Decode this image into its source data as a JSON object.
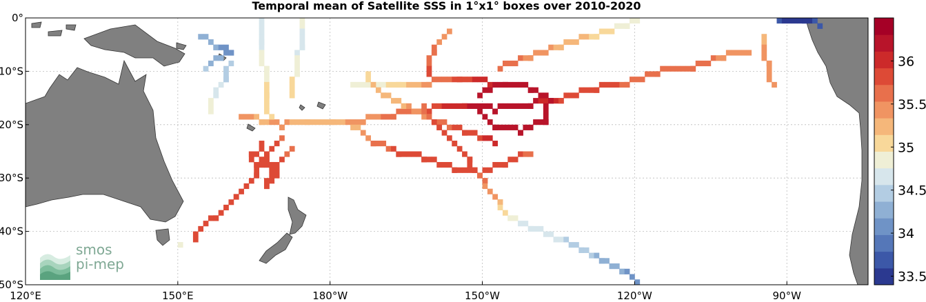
{
  "title": "Temporal mean of Satellite SSS in 1°x1° boxes over 2010-2020",
  "lon_ticks": [
    {
      "label": "120°E",
      "lon": 120
    },
    {
      "label": "150°E",
      "lon": 150
    },
    {
      "label": "180°W",
      "lon": 180
    },
    {
      "label": "150°W",
      "lon": 210
    },
    {
      "label": "120°W",
      "lon": 240
    },
    {
      "label": "90°W",
      "lon": 270
    }
  ],
  "lat_ticks": [
    {
      "label": "0°",
      "lat": 0
    },
    {
      "label": "10°S",
      "lat": -10
    },
    {
      "label": "20°S",
      "lat": -20
    },
    {
      "label": "30°S",
      "lat": -30
    },
    {
      "label": "40°S",
      "lat": -40
    },
    {
      "label": "50°S",
      "lat": -50
    }
  ],
  "colorbar": {
    "min": 33.4,
    "max": 36.5,
    "ticks": [
      "33.5",
      "34",
      "34.5",
      "35",
      "35.5",
      "36"
    ],
    "colors": [
      "#2b3990",
      "#3c58a8",
      "#5577b8",
      "#6f93c6",
      "#8fb0d4",
      "#b3cde3",
      "#d7e6ec",
      "#efefd6",
      "#f8d89a",
      "#f5b77a",
      "#f09462",
      "#e8704c",
      "#dd4a36",
      "#cc2a2a",
      "#b8142a",
      "#a50026"
    ]
  },
  "logo": {
    "line1": "smos",
    "line2": "pi-mep"
  },
  "chart_data": {
    "type": "heatmap",
    "title": "Temporal mean of Satellite SSS in 1°x1° boxes over 2010-2020",
    "xlim": [
      120,
      286
    ],
    "ylim": [
      -50,
      0
    ],
    "tracks": [
      {
        "values": [
          [
            153,
            -41.5,
            35.9
          ],
          [
            157,
            -37,
            35.8
          ],
          [
            161,
            -33,
            35.8
          ],
          [
            165,
            -29,
            35.9
          ],
          [
            167,
            -26,
            35.9
          ],
          [
            170,
            -22,
            35.7
          ]
        ]
      },
      {
        "values": [
          [
            150,
            -42,
            34.9
          ]
        ]
      },
      {
        "values": [
          [
            166,
            -23,
            35.9
          ],
          [
            167,
            -25,
            35.9
          ],
          [
            168,
            -27,
            35.9
          ],
          [
            165,
            -27,
            35.9
          ],
          [
            164,
            -25,
            35.8
          ],
          [
            169,
            -29,
            35.8
          ],
          [
            167,
            -31,
            35.8
          ],
          [
            172,
            -24,
            35.7
          ]
        ]
      },
      {
        "values": [
          [
            162,
            -18,
            35.4
          ],
          [
            166,
            -19,
            35.3
          ],
          [
            170,
            -20,
            35.4
          ],
          [
            175,
            -19,
            35.2
          ],
          [
            180,
            -19,
            35.3
          ],
          [
            186,
            -19,
            35.4
          ],
          [
            192,
            -18,
            35.6
          ],
          [
            199,
            -17,
            35.8
          ],
          [
            206,
            -16,
            36.1
          ],
          [
            212,
            -17,
            36.3
          ],
          [
            219,
            -16,
            36.2
          ],
          [
            225,
            -15,
            35.9
          ],
          [
            232,
            -13,
            35.8
          ],
          [
            238,
            -12,
            35.7
          ],
          [
            244,
            -10,
            35.6
          ],
          [
            251,
            -9,
            35.6
          ],
          [
            257,
            -7,
            35.5
          ],
          [
            262,
            -6,
            35.4
          ]
        ]
      },
      {
        "values": [
          [
            160,
            -8,
            34.4
          ],
          [
            159,
            -11,
            34.5
          ],
          [
            157,
            -14,
            34.7
          ],
          [
            156,
            -17,
            34.9
          ]
        ]
      },
      {
        "values": [
          [
            154,
            -3,
            34.3
          ],
          [
            157,
            -5,
            34.2
          ],
          [
            160,
            -6,
            34.1
          ],
          [
            155,
            -9,
            34.4
          ]
        ]
      },
      {
        "values": [
          [
            166,
            1,
            34.7
          ],
          [
            166,
            -4,
            34.7
          ],
          [
            167,
            -9,
            34.9
          ],
          [
            167,
            -14,
            35.0
          ],
          [
            168,
            -18,
            35.1
          ]
        ]
      },
      {
        "values": [
          [
            174,
            1,
            34.8
          ],
          [
            174,
            -5,
            34.7
          ],
          [
            173,
            -10,
            34.9
          ],
          [
            172,
            -14,
            35.1
          ]
        ]
      },
      {
        "values": [
          [
            184,
            -12,
            34.8
          ],
          [
            189,
            -12,
            34.9
          ],
          [
            193,
            -12,
            35.0
          ],
          [
            199,
            -12,
            35.5
          ],
          [
            205,
            -11,
            35.8
          ],
          [
            211,
            -12,
            36.1
          ]
        ]
      },
      {
        "values": [
          [
            187,
            -10,
            35.1
          ],
          [
            190,
            -14,
            35.2
          ],
          [
            194,
            -16,
            35.3
          ],
          [
            200,
            -19,
            35.6
          ],
          [
            206,
            -21,
            35.8
          ],
          [
            212,
            -23,
            36.0
          ]
        ]
      },
      {
        "values": [
          [
            184,
            -20,
            35.2
          ],
          [
            188,
            -23,
            35.6
          ],
          [
            193,
            -25,
            35.8
          ],
          [
            198,
            -26,
            35.8
          ],
          [
            204,
            -28,
            35.9
          ],
          [
            209,
            -29,
            35.8
          ],
          [
            214,
            -27,
            35.8
          ],
          [
            219,
            -25,
            35.7
          ]
        ]
      },
      {
        "values": [
          [
            198,
            -16,
            35.6
          ],
          [
            201,
            -20,
            35.8
          ],
          [
            204,
            -23,
            35.9
          ],
          [
            207,
            -26,
            35.9
          ],
          [
            210,
            -30,
            35.6
          ],
          [
            213,
            -34,
            35.3
          ],
          [
            215,
            -37,
            34.8
          ],
          [
            219,
            -39,
            34.7
          ],
          [
            224,
            -41,
            34.6
          ],
          [
            229,
            -43,
            34.5
          ],
          [
            233,
            -45,
            34.3
          ],
          [
            237,
            -47,
            34.2
          ],
          [
            240,
            -49,
            34.1
          ]
        ]
      },
      {
        "values": [
          [
            209,
            -14,
            36.3
          ],
          [
            214,
            -12,
            36.3
          ],
          [
            219,
            -13,
            36.3
          ],
          [
            223,
            -15,
            36.3
          ],
          [
            222,
            -19,
            36.3
          ],
          [
            217,
            -21,
            36.3
          ],
          [
            212,
            -20,
            36.3
          ],
          [
            209,
            -17,
            36.3
          ]
        ]
      },
      {
        "values": [
          [
            213,
            -9,
            35.6
          ],
          [
            219,
            -7,
            35.5
          ],
          [
            225,
            -5,
            35.3
          ],
          [
            232,
            -3,
            35.1
          ],
          [
            238,
            -1,
            34.8
          ],
          [
            243,
            1,
            34.7
          ]
        ]
      },
      {
        "values": [
          [
            203,
            -2,
            35.4
          ],
          [
            200,
            -6,
            35.6
          ],
          [
            199,
            -10,
            35.8
          ]
        ]
      },
      {
        "values": [
          [
            265,
            -3,
            35.3
          ],
          [
            266,
            -8,
            35.4
          ],
          [
            267,
            -12,
            35.5
          ]
        ]
      },
      {
        "values": [
          [
            268,
            0,
            33.6
          ],
          [
            273,
            0,
            33.5
          ],
          [
            276,
            -1,
            33.7
          ]
        ]
      }
    ]
  }
}
